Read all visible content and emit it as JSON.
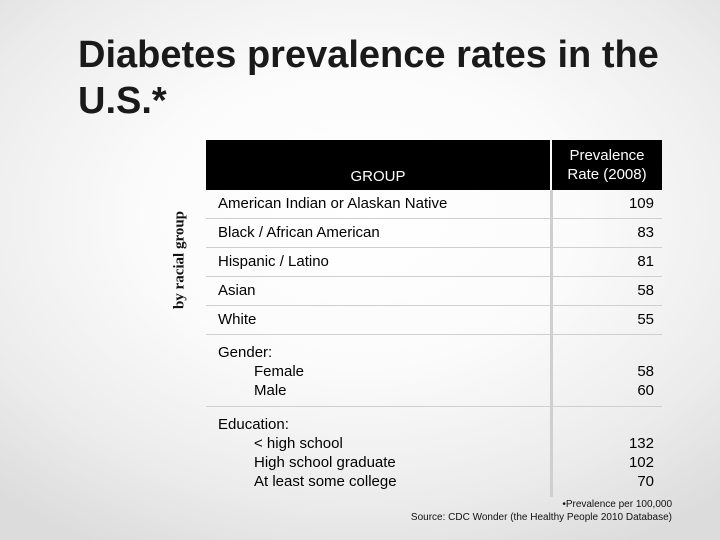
{
  "slide": {
    "title": "Diabetes prevalence rates in the U.S.*",
    "side_label": "by racial group"
  },
  "table": {
    "header": {
      "group": "GROUP",
      "rate_line1": "Prevalence",
      "rate_line2": "Rate (2008)"
    },
    "rows": [
      {
        "group": "American Indian or Alaskan Native",
        "rate": "109"
      },
      {
        "group": "Black / African American",
        "rate": "83"
      },
      {
        "group": "Hispanic / Latino",
        "rate": "81"
      },
      {
        "group": "Asian",
        "rate": "58"
      },
      {
        "group": "White",
        "rate": "55"
      }
    ],
    "gender": {
      "heading": "Gender:",
      "items": [
        {
          "label": "Female",
          "rate": "58"
        },
        {
          "label": "Male",
          "rate": "60"
        }
      ]
    },
    "education": {
      "heading": "Education:",
      "items": [
        {
          "label": "< high school",
          "rate": "132"
        },
        {
          "label": "High school graduate",
          "rate": "102"
        },
        {
          "label": "At least some college",
          "rate": "70"
        }
      ]
    }
  },
  "footnote": {
    "line1": "•Prevalence per 100,000",
    "line2": "Source: CDC Wonder (the Healthy People 2010 Database)"
  }
}
